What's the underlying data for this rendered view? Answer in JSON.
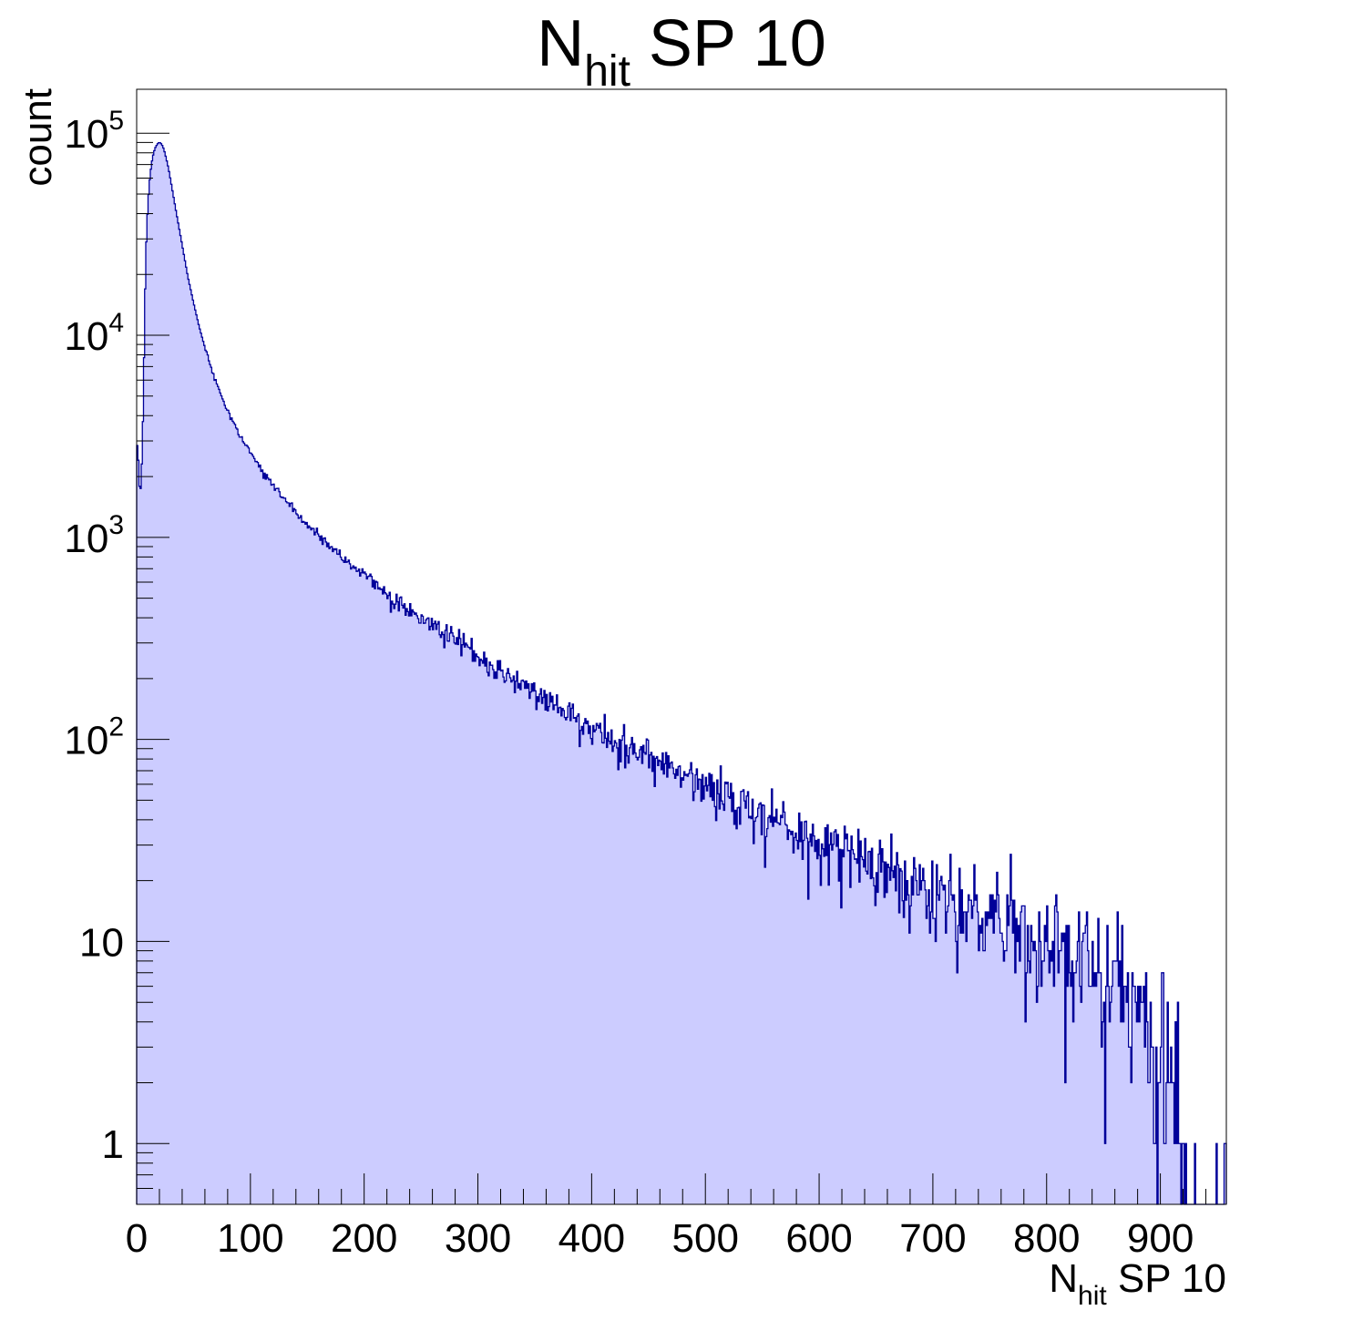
{
  "chart_data": {
    "type": "histogram",
    "title": {
      "main": "N",
      "sub": "hit",
      "rest": " SP 10"
    },
    "xlabel": {
      "main": "N",
      "sub": "hit",
      "rest": " SP 10"
    },
    "ylabel": "count",
    "xlim": [
      0,
      958
    ],
    "ylim": [
      0.5,
      165000
    ],
    "y_scale": "log",
    "grid": false,
    "legend": "none",
    "x_ticks": [
      0,
      100,
      200,
      300,
      400,
      500,
      600,
      700,
      800,
      900
    ],
    "y_ticks": [
      {
        "value": 1,
        "base": "1",
        "exp": ""
      },
      {
        "value": 10,
        "base": "10",
        "exp": ""
      },
      {
        "value": 100,
        "base": "10",
        "exp": "2"
      },
      {
        "value": 1000,
        "base": "10",
        "exp": "3"
      },
      {
        "value": 10000,
        "base": "10",
        "exp": "4"
      },
      {
        "value": 100000,
        "base": "10",
        "exp": "5"
      }
    ],
    "bin_width": 1,
    "shape_points": [
      [
        0,
        2800
      ],
      [
        1,
        2900
      ],
      [
        2,
        2000
      ],
      [
        3,
        1600
      ],
      [
        4,
        1900
      ],
      [
        5,
        2800
      ],
      [
        6,
        5000
      ],
      [
        7,
        12000
      ],
      [
        8,
        24000
      ],
      [
        9,
        35000
      ],
      [
        10,
        45000
      ],
      [
        11,
        55000
      ],
      [
        12,
        63000
      ],
      [
        13,
        70000
      ],
      [
        14,
        76000
      ],
      [
        15,
        80000
      ],
      [
        16,
        84000
      ],
      [
        17,
        86000
      ],
      [
        18,
        88000
      ],
      [
        19,
        89500
      ],
      [
        20,
        90000
      ],
      [
        21,
        89500
      ],
      [
        22,
        88000
      ],
      [
        23,
        86000
      ],
      [
        24,
        83000
      ],
      [
        25,
        79000
      ],
      [
        26,
        75000
      ],
      [
        28,
        67000
      ],
      [
        30,
        58000
      ],
      [
        32,
        50000
      ],
      [
        35,
        40000
      ],
      [
        40,
        28000
      ],
      [
        45,
        19500
      ],
      [
        50,
        14500
      ],
      [
        55,
        11000
      ],
      [
        60,
        8700
      ],
      [
        65,
        7000
      ],
      [
        70,
        5800
      ],
      [
        75,
        4900
      ],
      [
        80,
        4200
      ],
      [
        90,
        3200
      ],
      [
        100,
        2600
      ],
      [
        110,
        2150
      ],
      [
        120,
        1800
      ],
      [
        130,
        1550
      ],
      [
        150,
        1150
      ],
      [
        175,
        850
      ],
      [
        200,
        650
      ],
      [
        225,
        500
      ],
      [
        250,
        400
      ],
      [
        275,
        320
      ],
      [
        300,
        255
      ],
      [
        325,
        205
      ],
      [
        350,
        170
      ],
      [
        375,
        140
      ],
      [
        400,
        115
      ],
      [
        425,
        97
      ],
      [
        450,
        82
      ],
      [
        475,
        70
      ],
      [
        500,
        60
      ],
      [
        525,
        51
      ],
      [
        550,
        43
      ],
      [
        575,
        37
      ],
      [
        600,
        32
      ],
      [
        625,
        27
      ],
      [
        650,
        23
      ],
      [
        675,
        20
      ],
      [
        700,
        17
      ],
      [
        725,
        15
      ],
      [
        750,
        13
      ],
      [
        775,
        11
      ],
      [
        800,
        9.5
      ],
      [
        825,
        8
      ],
      [
        850,
        7
      ],
      [
        875,
        5.5
      ],
      [
        890,
        4
      ],
      [
        900,
        3
      ],
      [
        910,
        2
      ],
      [
        920,
        1.2
      ],
      [
        930,
        0.6
      ],
      [
        958,
        0.5
      ]
    ],
    "noise_seed": 20240517,
    "colors": {
      "fill": "#ccccff",
      "line": "#000099",
      "axis": "#000000"
    }
  }
}
